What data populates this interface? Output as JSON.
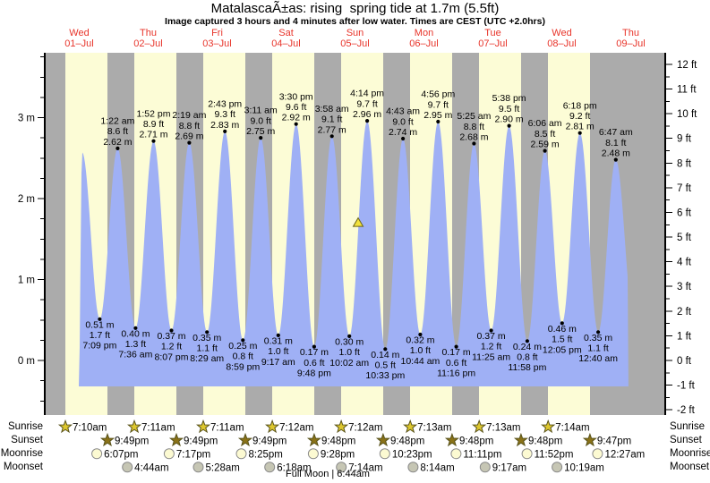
{
  "title": "MatalascaÃ±as: rising  spring tide at 1.7m (5.5ft)",
  "subtitle": "Image captured 3 hours and 4 minutes after low water. Times are CEST (UTC +2.0hrs)",
  "day_headers": [
    {
      "name": "Wed",
      "date": "01–Jul"
    },
    {
      "name": "Thu",
      "date": "02–Jul"
    },
    {
      "name": "Fri",
      "date": "03–Jul"
    },
    {
      "name": "Sat",
      "date": "04–Jul"
    },
    {
      "name": "Sun",
      "date": "05–Jul"
    },
    {
      "name": "Mon",
      "date": "06–Jul"
    },
    {
      "name": "Tue",
      "date": "07–Jul"
    },
    {
      "name": "Wed",
      "date": "08–Jul"
    },
    {
      "name": "Thu",
      "date": "09–Jul"
    }
  ],
  "chart_data": {
    "type": "area",
    "title": "Tide height over 9 days",
    "y_axis_left": {
      "unit": "m",
      "major_ticks": [
        {
          "value": 0,
          "label": "0 m"
        },
        {
          "value": 1,
          "label": "1 m"
        },
        {
          "value": 2,
          "label": "2 m"
        },
        {
          "value": 3,
          "label": "3 m"
        }
      ],
      "minor_step": 0.25,
      "minor_range": [
        -0.5,
        3.75
      ]
    },
    "y_axis_right": {
      "unit": "ft",
      "major_ticks": [
        {
          "value": -2,
          "label": "-2 ft"
        },
        {
          "value": -1,
          "label": "-1 ft"
        },
        {
          "value": 0,
          "label": "0 ft"
        },
        {
          "value": 1,
          "label": "1 ft"
        },
        {
          "value": 2,
          "label": "2 ft"
        },
        {
          "value": 3,
          "label": "3 ft"
        },
        {
          "value": 4,
          "label": "4 ft"
        },
        {
          "value": 5,
          "label": "5 ft"
        },
        {
          "value": 6,
          "label": "6 ft"
        },
        {
          "value": 7,
          "label": "7 ft"
        },
        {
          "value": 8,
          "label": "8 ft"
        },
        {
          "value": 9,
          "label": "9 ft"
        },
        {
          "value": 10,
          "label": "10 ft"
        },
        {
          "value": 11,
          "label": "11 ft"
        },
        {
          "value": 12,
          "label": "12 ft"
        }
      ],
      "minor_step": 0.5
    },
    "x_axis": {
      "num_days": 9,
      "first_day": "Wed 01-Jul"
    },
    "area_x_hours": [
      11.84,
      203.2
    ],
    "baseline_m": -0.32,
    "current_marker": {
      "day": 4,
      "hour": 13.1,
      "height_m": 1.7
    },
    "extremes": [
      {
        "kind": "edge",
        "day": 0,
        "hour": 11.84,
        "height_m": -0.32
      },
      {
        "kind": "high",
        "day": 0,
        "hour": 13.0,
        "height_m": 2.57,
        "labeled": false
      },
      {
        "kind": "low",
        "day": 0,
        "time": "7:09 pm",
        "ft_label": "1.7 ft",
        "m_label": "0.51 m",
        "height_m": 0.51,
        "labeled": true
      },
      {
        "kind": "high",
        "day": 1,
        "time": "1:22 am",
        "ft_label": "8.6 ft",
        "m_label": "2.62 m",
        "height_m": 2.62,
        "labeled": true
      },
      {
        "kind": "low",
        "day": 1,
        "time": "7:36 am",
        "ft_label": "1.3 ft",
        "m_label": "0.40 m",
        "height_m": 0.4,
        "labeled": true
      },
      {
        "kind": "high",
        "day": 1,
        "time": "1:52 pm",
        "ft_label": "8.9 ft",
        "m_label": "2.71 m",
        "height_m": 2.71,
        "labeled": true
      },
      {
        "kind": "low",
        "day": 1,
        "time": "8:07 pm",
        "ft_label": "1.2 ft",
        "m_label": "0.37 m",
        "height_m": 0.37,
        "labeled": true
      },
      {
        "kind": "high",
        "day": 2,
        "time": "2:19 am",
        "ft_label": "8.8 ft",
        "m_label": "2.69 m",
        "height_m": 2.69,
        "labeled": true
      },
      {
        "kind": "low",
        "day": 2,
        "time": "8:29 am",
        "ft_label": "1.1 ft",
        "m_label": "0.35 m",
        "height_m": 0.35,
        "labeled": true
      },
      {
        "kind": "high",
        "day": 2,
        "time": "2:43 pm",
        "ft_label": "9.3 ft",
        "m_label": "2.83 m",
        "height_m": 2.83,
        "labeled": true
      },
      {
        "kind": "low",
        "day": 2,
        "time": "8:59 pm",
        "ft_label": "0.8 ft",
        "m_label": "0.25 m",
        "height_m": 0.25,
        "labeled": true
      },
      {
        "kind": "high",
        "day": 3,
        "time": "3:11 am",
        "ft_label": "9.0 ft",
        "m_label": "2.75 m",
        "height_m": 2.75,
        "labeled": true
      },
      {
        "kind": "low",
        "day": 3,
        "time": "9:17 am",
        "ft_label": "1.0 ft",
        "m_label": "0.31 m",
        "height_m": 0.31,
        "labeled": true
      },
      {
        "kind": "high",
        "day": 3,
        "time": "3:30 pm",
        "ft_label": "9.6 ft",
        "m_label": "2.92 m",
        "height_m": 2.92,
        "labeled": true
      },
      {
        "kind": "low",
        "day": 3,
        "time": "9:48 pm",
        "ft_label": "0.6 ft",
        "m_label": "0.17 m",
        "height_m": 0.17,
        "labeled": true
      },
      {
        "kind": "high",
        "day": 4,
        "time": "3:58 am",
        "ft_label": "9.1 ft",
        "m_label": "2.77 m",
        "height_m": 2.77,
        "labeled": true
      },
      {
        "kind": "low",
        "day": 4,
        "time": "10:02 am",
        "ft_label": "1.0 ft",
        "m_label": "0.30 m",
        "height_m": 0.3,
        "labeled": true
      },
      {
        "kind": "high",
        "day": 4,
        "time": "4:14 pm",
        "ft_label": "9.7 ft",
        "m_label": "2.96 m",
        "height_m": 2.96,
        "labeled": true
      },
      {
        "kind": "low",
        "day": 4,
        "time": "10:33 pm",
        "ft_label": "0.5 ft",
        "m_label": "0.14 m",
        "height_m": 0.14,
        "labeled": true
      },
      {
        "kind": "high",
        "day": 5,
        "time": "4:43 am",
        "ft_label": "9.0 ft",
        "m_label": "2.74 m",
        "height_m": 2.74,
        "labeled": true
      },
      {
        "kind": "low",
        "day": 5,
        "time": "10:44 am",
        "ft_label": "1.0 ft",
        "m_label": "0.32 m",
        "height_m": 0.32,
        "labeled": true
      },
      {
        "kind": "high",
        "day": 5,
        "time": "4:56 pm",
        "ft_label": "9.7 ft",
        "m_label": "2.95 m",
        "height_m": 2.95,
        "labeled": true
      },
      {
        "kind": "low",
        "day": 5,
        "time": "11:16 pm",
        "ft_label": "0.6 ft",
        "m_label": "0.17 m",
        "height_m": 0.17,
        "labeled": true
      },
      {
        "kind": "high",
        "day": 6,
        "time": "5:25 am",
        "ft_label": "8.8 ft",
        "m_label": "2.68 m",
        "height_m": 2.68,
        "labeled": true
      },
      {
        "kind": "low",
        "day": 6,
        "time": "11:25 am",
        "ft_label": "1.2 ft",
        "m_label": "0.37 m",
        "height_m": 0.37,
        "labeled": true
      },
      {
        "kind": "high",
        "day": 6,
        "time": "5:38 pm",
        "ft_label": "9.5 ft",
        "m_label": "2.90 m",
        "height_m": 2.9,
        "labeled": true
      },
      {
        "kind": "low",
        "day": 6,
        "time": "11:58 pm",
        "ft_label": "0.8 ft",
        "m_label": "0.24 m",
        "height_m": 0.24,
        "labeled": true
      },
      {
        "kind": "high",
        "day": 7,
        "time": "6:06 am",
        "ft_label": "8.5 ft",
        "m_label": "2.59 m",
        "height_m": 2.59,
        "labeled": true
      },
      {
        "kind": "low",
        "day": 7,
        "time": "12:05 pm",
        "ft_label": "1.5 ft",
        "m_label": "0.46 m",
        "height_m": 0.46,
        "labeled": true
      },
      {
        "kind": "high",
        "day": 7,
        "time": "6:18 pm",
        "ft_label": "9.2 ft",
        "m_label": "2.81 m",
        "height_m": 2.81,
        "labeled": true
      },
      {
        "kind": "low",
        "day": 8,
        "time": "12:40 am",
        "ft_label": "1.1 ft",
        "m_label": "0.35 m",
        "height_m": 0.35,
        "labeled": true
      },
      {
        "kind": "high",
        "day": 8,
        "time": "6:47 am",
        "ft_label": "8.1 ft",
        "m_label": "2.48 m",
        "height_m": 2.48,
        "labeled": true
      },
      {
        "kind": "edge",
        "day": 8,
        "hour": 13.1,
        "height_m": 0.5
      }
    ]
  },
  "astro": {
    "rows": [
      {
        "label": "Sunrise",
        "icon": "sunrise-star-icon",
        "events": [
          {
            "day": 0,
            "time": "7:10am"
          },
          {
            "day": 1,
            "time": "7:11am"
          },
          {
            "day": 2,
            "time": "7:11am"
          },
          {
            "day": 3,
            "time": "7:12am"
          },
          {
            "day": 4,
            "time": "7:12am"
          },
          {
            "day": 5,
            "time": "7:13am"
          },
          {
            "day": 6,
            "time": "7:13am"
          },
          {
            "day": 7,
            "time": "7:14am"
          }
        ]
      },
      {
        "label": "Sunset",
        "icon": "sunset-star-icon",
        "events": [
          {
            "day": 0,
            "time": "9:49pm"
          },
          {
            "day": 1,
            "time": "9:49pm"
          },
          {
            "day": 2,
            "time": "9:49pm"
          },
          {
            "day": 3,
            "time": "9:48pm"
          },
          {
            "day": 4,
            "time": "9:48pm"
          },
          {
            "day": 5,
            "time": "9:48pm"
          },
          {
            "day": 6,
            "time": "9:48pm"
          },
          {
            "day": 7,
            "time": "9:47pm"
          }
        ]
      },
      {
        "label": "Moonrise",
        "icon": "moonrise-circle-icon",
        "events": [
          {
            "day": 0,
            "time": "6:07pm"
          },
          {
            "day": 1,
            "time": "7:17pm"
          },
          {
            "day": 2,
            "time": "8:25pm"
          },
          {
            "day": 3,
            "time": "9:28pm"
          },
          {
            "day": 4,
            "time": "10:23pm"
          },
          {
            "day": 5,
            "time": "11:11pm"
          },
          {
            "day": 6,
            "time": "11:52pm"
          },
          {
            "day": 8,
            "time": "12:27am"
          }
        ]
      },
      {
        "label": "Moonset",
        "icon": "moonset-circle-icon",
        "events": [
          {
            "day": 1,
            "time": "4:44am"
          },
          {
            "day": 2,
            "time": "5:28am"
          },
          {
            "day": 3,
            "time": "6:18am"
          },
          {
            "day": 4,
            "time": "7:14am"
          },
          {
            "day": 5,
            "time": "8:14am"
          },
          {
            "day": 6,
            "time": "9:17am"
          },
          {
            "day": 7,
            "time": "10:19am"
          }
        ]
      }
    ],
    "footnote": "Full Moon | 6:44am"
  },
  "colors": {
    "day_band": "#fcfcd6",
    "night_band": "#ababab",
    "tide_fill": "#9fb0f5",
    "header_red": "#e8342a",
    "text": "#000000",
    "marker_fill": "#f2e23c",
    "marker_stroke": "#6b6414",
    "sunrise_star_fill": "#ddc72e",
    "star_stroke": "#59531b",
    "sunset_star_fill": "#8a7218",
    "moonrise_fill": "#fcfad2",
    "moonset_fill": "#c6c6b4",
    "moon_stroke": "#8a8a8a"
  }
}
